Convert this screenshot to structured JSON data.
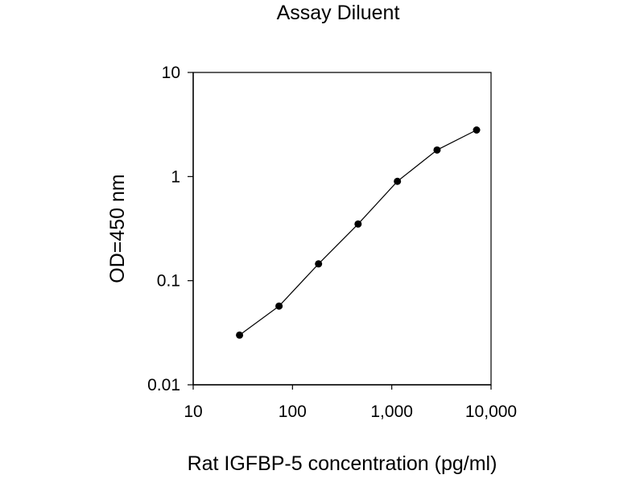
{
  "chart_data": {
    "type": "line",
    "title": "Assay Diluent",
    "xlabel": "Rat IGFBP-5 concentration (pg/ml)",
    "ylabel": "OD=450 nm",
    "x_scale": "log",
    "y_scale": "log",
    "xlim": [
      10,
      10000
    ],
    "ylim": [
      0.01,
      10
    ],
    "x_ticks": [
      10,
      100,
      1000,
      10000
    ],
    "x_tick_labels": [
      "10",
      "100",
      "1,000",
      "10,000"
    ],
    "y_ticks": [
      0.01,
      0.1,
      1,
      10
    ],
    "y_tick_labels": [
      "0.01",
      "0.1",
      "1",
      "10"
    ],
    "grid": false,
    "legend": "none",
    "series": [
      {
        "marker": "circle",
        "color": "#000000",
        "x": [
          29.3,
          73.2,
          183,
          458,
          1140,
          2860,
          7150
        ],
        "y": [
          0.03,
          0.057,
          0.145,
          0.35,
          0.9,
          1.8,
          2.8
        ]
      }
    ]
  }
}
